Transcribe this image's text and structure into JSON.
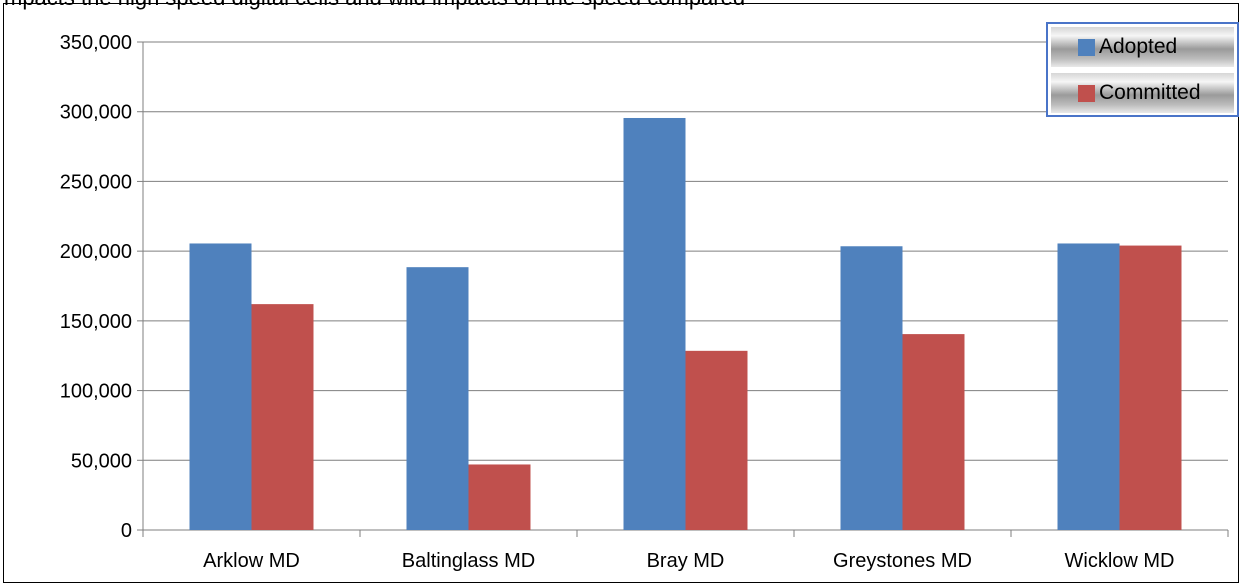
{
  "header_fragment": "mpacts the high speed digital cells and wild impacts on the speed compared",
  "chart_data": {
    "type": "bar",
    "categories": [
      "Arklow MD",
      "Baltinglass MD",
      "Bray MD",
      "Greystones MD",
      "Wicklow MD"
    ],
    "series": [
      {
        "name": "Adopted",
        "color": "#4f81bd",
        "values": [
          205500,
          188500,
          295500,
          203500,
          205500
        ]
      },
      {
        "name": "Committed",
        "color": "#c0504d",
        "values": [
          162000,
          47000,
          128500,
          140500,
          204000
        ]
      }
    ],
    "ylim": [
      0,
      350000
    ],
    "yticks": [
      0,
      50000,
      100000,
      150000,
      200000,
      250000,
      300000,
      350000
    ],
    "ytick_labels": [
      "0",
      "50,000",
      "100,000",
      "150,000",
      "200,000",
      "250,000",
      "300,000",
      "350,000"
    ],
    "grid": true,
    "legend_position": "top-right",
    "title": "",
    "xlabel": "",
    "ylabel": ""
  }
}
